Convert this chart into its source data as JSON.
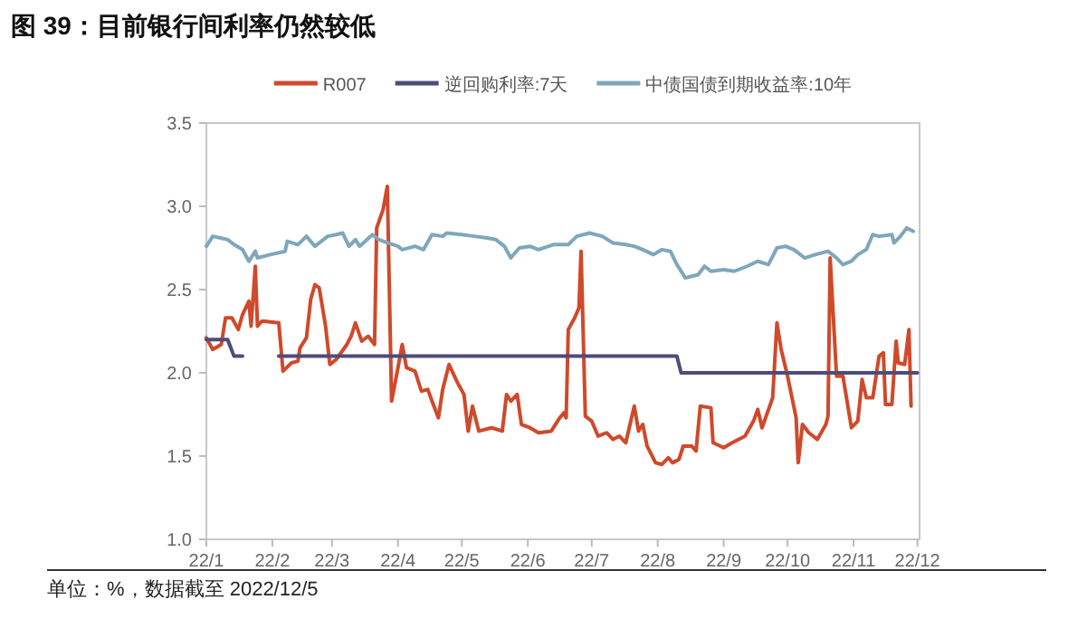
{
  "chart_data": {
    "type": "line",
    "title": "图 39：目前银行间利率仍然较低",
    "annotations": [
      "单位：%，数据截至 2022/12/5"
    ],
    "legend": "top",
    "grid": false,
    "marker": "none",
    "line_style": "solid",
    "xlim": [
      "2022-01-01",
      "2022-12-02"
    ],
    "ylim": [
      1.0,
      3.5
    ],
    "xticks": [
      {
        "value": "2022-01-01",
        "label": "22/1"
      },
      {
        "value": "2022-02-01",
        "label": "22/2"
      },
      {
        "value": "2022-03-01",
        "label": "22/3"
      },
      {
        "value": "2022-04-01",
        "label": "22/4"
      },
      {
        "value": "2022-05-01",
        "label": "22/5"
      },
      {
        "value": "2022-06-01",
        "label": "22/6"
      },
      {
        "value": "2022-07-01",
        "label": "22/7"
      },
      {
        "value": "2022-08-01",
        "label": "22/8"
      },
      {
        "value": "2022-09-01",
        "label": "22/9"
      },
      {
        "value": "2022-10-01",
        "label": "22/10"
      },
      {
        "value": "2022-11-01",
        "label": "22/11"
      },
      {
        "value": "2022-12-01",
        "label": "22/12"
      }
    ],
    "yticks": [
      {
        "value": 1.0,
        "label": "1.0"
      },
      {
        "value": 1.5,
        "label": "1.5"
      },
      {
        "value": 2.0,
        "label": "2.0"
      },
      {
        "value": 2.5,
        "label": "2.5"
      },
      {
        "value": 3.0,
        "label": "3.0"
      },
      {
        "value": 3.5,
        "label": "3.5"
      }
    ],
    "series": [
      {
        "name": "R007",
        "color": "#d0492a",
        "x": [
          "2022-01-01",
          "2022-01-04",
          "2022-01-08",
          "2022-01-10",
          "2022-01-13",
          "2022-01-16",
          "2022-01-18",
          "2022-01-21",
          "2022-01-22",
          "2022-01-24",
          "2022-01-25",
          "2022-01-27",
          "2022-01-28",
          "2022-02-04",
          "2022-02-06",
          "2022-02-10",
          "2022-02-13",
          "2022-02-14",
          "2022-02-17",
          "2022-02-19",
          "2022-02-21",
          "2022-02-23",
          "2022-02-26",
          "2022-02-28",
          "2022-03-03",
          "2022-03-08",
          "2022-03-10",
          "2022-03-12",
          "2022-03-15",
          "2022-03-18",
          "2022-03-21",
          "2022-03-22",
          "2022-03-25",
          "2022-03-27",
          "2022-03-29",
          "2022-04-01",
          "2022-04-03",
          "2022-04-05",
          "2022-04-09",
          "2022-04-12",
          "2022-04-15",
          "2022-04-17",
          "2022-04-20",
          "2022-04-22",
          "2022-04-25",
          "2022-04-29",
          "2022-05-02",
          "2022-05-04",
          "2022-05-06",
          "2022-05-09",
          "2022-05-15",
          "2022-05-20",
          "2022-05-22",
          "2022-05-24",
          "2022-05-27",
          "2022-05-29",
          "2022-06-02",
          "2022-06-06",
          "2022-06-12",
          "2022-06-16",
          "2022-06-18",
          "2022-06-19",
          "2022-06-20",
          "2022-06-23",
          "2022-06-25",
          "2022-06-26",
          "2022-06-28",
          "2022-07-01",
          "2022-07-04",
          "2022-07-08",
          "2022-07-11",
          "2022-07-14",
          "2022-07-17",
          "2022-07-19",
          "2022-07-21",
          "2022-07-23",
          "2022-07-25",
          "2022-07-27",
          "2022-07-31",
          "2022-08-03",
          "2022-08-06",
          "2022-08-08",
          "2022-08-11",
          "2022-08-13",
          "2022-08-17",
          "2022-08-19",
          "2022-08-21",
          "2022-08-26",
          "2022-08-27",
          "2022-09-01",
          "2022-09-05",
          "2022-09-11",
          "2022-09-15",
          "2022-09-17",
          "2022-09-19",
          "2022-09-24",
          "2022-09-26",
          "2022-09-28",
          "2022-10-01",
          "2022-10-05",
          "2022-10-06",
          "2022-10-08",
          "2022-10-11",
          "2022-10-15",
          "2022-10-19",
          "2022-10-20",
          "2022-10-21",
          "2022-10-24",
          "2022-10-27",
          "2022-10-31",
          "2022-11-03",
          "2022-11-05",
          "2022-11-07",
          "2022-11-10",
          "2022-11-13",
          "2022-11-15",
          "2022-11-16",
          "2022-11-19",
          "2022-11-21",
          "2022-11-22",
          "2022-11-25",
          "2022-11-27",
          "2022-11-28"
        ],
        "values": [
          2.21,
          2.14,
          2.17,
          2.33,
          2.33,
          2.26,
          2.35,
          2.43,
          2.28,
          2.64,
          2.28,
          2.31,
          2.31,
          2.3,
          2.01,
          2.06,
          2.07,
          2.15,
          2.21,
          2.44,
          2.53,
          2.51,
          2.28,
          2.05,
          2.08,
          2.17,
          2.22,
          2.3,
          2.19,
          2.22,
          2.17,
          2.87,
          2.98,
          3.12,
          1.83,
          2.03,
          2.17,
          2.03,
          2.01,
          1.89,
          1.9,
          1.83,
          1.73,
          1.9,
          2.05,
          1.94,
          1.87,
          1.65,
          1.8,
          1.65,
          1.67,
          1.65,
          1.87,
          1.83,
          1.87,
          1.69,
          1.67,
          1.64,
          1.65,
          1.73,
          1.76,
          1.73,
          2.26,
          2.33,
          2.39,
          2.73,
          1.74,
          1.71,
          1.62,
          1.64,
          1.6,
          1.62,
          1.58,
          1.69,
          1.8,
          1.65,
          1.69,
          1.56,
          1.46,
          1.45,
          1.49,
          1.46,
          1.48,
          1.56,
          1.56,
          1.53,
          1.8,
          1.79,
          1.58,
          1.55,
          1.58,
          1.62,
          1.71,
          1.78,
          1.67,
          1.85,
          2.3,
          2.14,
          1.98,
          1.73,
          1.46,
          1.69,
          1.64,
          1.6,
          1.69,
          1.74,
          2.69,
          1.98,
          1.98,
          1.67,
          1.71,
          1.96,
          1.85,
          1.85,
          2.1,
          2.12,
          1.81,
          1.81,
          2.19,
          2.06,
          2.05,
          2.26,
          1.8
        ]
      },
      {
        "name": "逆回购利率:7天",
        "color": "#4e4c78",
        "x": [
          "2022-01-01",
          "2022-01-11",
          "2022-01-14",
          "2022-01-18"
        ],
        "values": [
          2.2,
          2.2,
          2.1,
          2.1
        ]
      },
      {
        "color": "#4e4c78",
        "x": [
          "2022-02-04",
          "2022-08-10",
          "2022-08-12",
          "2022-12-01"
        ],
        "values": [
          2.1,
          2.1,
          2.0,
          2.0
        ]
      },
      {
        "name": "中债国债到期收益率:10年",
        "color": "#7ea7bb",
        "x": [
          "2022-01-01",
          "2022-01-04",
          "2022-01-11",
          "2022-01-14",
          "2022-01-18",
          "2022-01-21",
          "2022-01-24",
          "2022-01-25",
          "2022-01-31",
          "2022-02-07",
          "2022-02-08",
          "2022-02-13",
          "2022-02-17",
          "2022-02-21",
          "2022-02-27",
          "2022-03-03",
          "2022-03-06",
          "2022-03-09",
          "2022-03-12",
          "2022-03-14",
          "2022-03-20",
          "2022-03-23",
          "2022-04-01",
          "2022-04-03",
          "2022-04-09",
          "2022-04-13",
          "2022-04-17",
          "2022-04-22",
          "2022-04-24",
          "2022-05-01",
          "2022-05-07",
          "2022-05-13",
          "2022-05-17",
          "2022-05-21",
          "2022-05-24",
          "2022-05-28",
          "2022-06-02",
          "2022-06-06",
          "2022-06-13",
          "2022-06-20",
          "2022-06-24",
          "2022-06-30",
          "2022-07-06",
          "2022-07-11",
          "2022-07-17",
          "2022-07-21",
          "2022-07-25",
          "2022-07-30",
          "2022-08-03",
          "2022-08-07",
          "2022-08-10",
          "2022-08-14",
          "2022-08-20",
          "2022-08-23",
          "2022-08-26",
          "2022-09-01",
          "2022-09-06",
          "2022-09-12",
          "2022-09-17",
          "2022-09-22",
          "2022-09-26",
          "2022-09-30",
          "2022-10-04",
          "2022-10-09",
          "2022-10-14",
          "2022-10-20",
          "2022-10-24",
          "2022-10-27",
          "2022-10-31",
          "2022-11-03",
          "2022-11-07",
          "2022-11-10",
          "2022-11-13",
          "2022-11-19",
          "2022-11-20",
          "2022-11-23",
          "2022-11-26",
          "2022-11-29"
        ],
        "values": [
          2.76,
          2.82,
          2.8,
          2.77,
          2.74,
          2.67,
          2.73,
          2.69,
          2.71,
          2.73,
          2.79,
          2.77,
          2.82,
          2.76,
          2.82,
          2.83,
          2.84,
          2.76,
          2.8,
          2.76,
          2.83,
          2.8,
          2.76,
          2.74,
          2.76,
          2.74,
          2.83,
          2.82,
          2.84,
          2.83,
          2.82,
          2.81,
          2.8,
          2.76,
          2.69,
          2.75,
          2.76,
          2.74,
          2.77,
          2.77,
          2.82,
          2.84,
          2.82,
          2.78,
          2.77,
          2.76,
          2.74,
          2.71,
          2.74,
          2.73,
          2.65,
          2.57,
          2.59,
          2.64,
          2.61,
          2.62,
          2.61,
          2.64,
          2.67,
          2.65,
          2.75,
          2.76,
          2.74,
          2.69,
          2.71,
          2.73,
          2.69,
          2.65,
          2.67,
          2.71,
          2.74,
          2.83,
          2.82,
          2.83,
          2.78,
          2.82,
          2.87,
          2.85
        ]
      }
    ]
  }
}
